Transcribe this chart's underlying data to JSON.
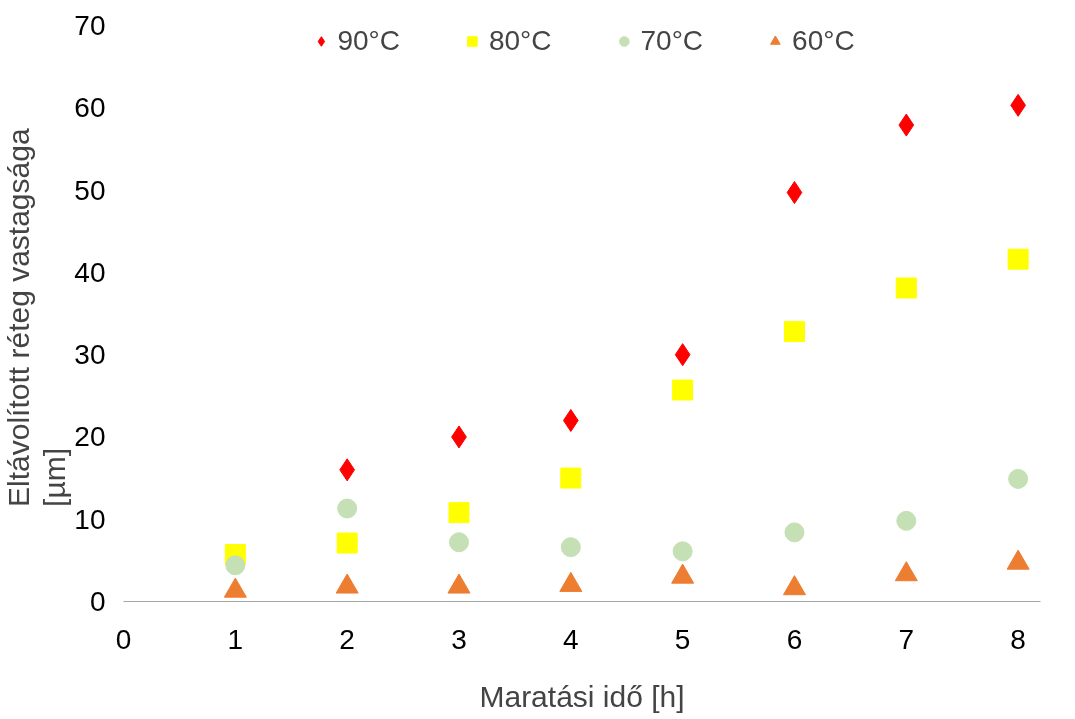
{
  "chart_data": {
    "type": "scatter",
    "xlabel": "Maratási idő [h]",
    "ylabel": "Eltávolított  réteg vastagsága\n[µm]",
    "x": [
      1,
      2,
      3,
      4,
      5,
      6,
      7,
      8
    ],
    "series": [
      {
        "name": "90°C",
        "color": "#ff0000",
        "marker": "diamond",
        "values": [
          null,
          16,
          20,
          22,
          30,
          49.7,
          57.9,
          60.3
        ]
      },
      {
        "name": "80°C",
        "color": "#ffff00",
        "marker": "square",
        "values": [
          5.7,
          7.1,
          10.8,
          15,
          25.7,
          32.8,
          38.1,
          41.6
        ]
      },
      {
        "name": "70°C",
        "color": "#c5e0b4",
        "marker": "circle",
        "values": [
          4.4,
          11.3,
          7.2,
          6.6,
          6.1,
          8.4,
          9.8,
          14.9
        ]
      },
      {
        "name": "60°C",
        "color": "#ed7d31",
        "marker": "triangle",
        "values": [
          1.3,
          1.8,
          1.8,
          2.0,
          3.0,
          1.6,
          3.3,
          4.7
        ]
      }
    ],
    "xlim": [
      0,
      8.2
    ],
    "xticks": [
      0,
      1,
      2,
      3,
      4,
      5,
      6,
      7,
      8
    ],
    "ylim": [
      0,
      70
    ],
    "yticks": [
      0,
      10,
      20,
      30,
      40,
      50,
      60,
      70
    ],
    "grid": false,
    "legend": "top"
  }
}
